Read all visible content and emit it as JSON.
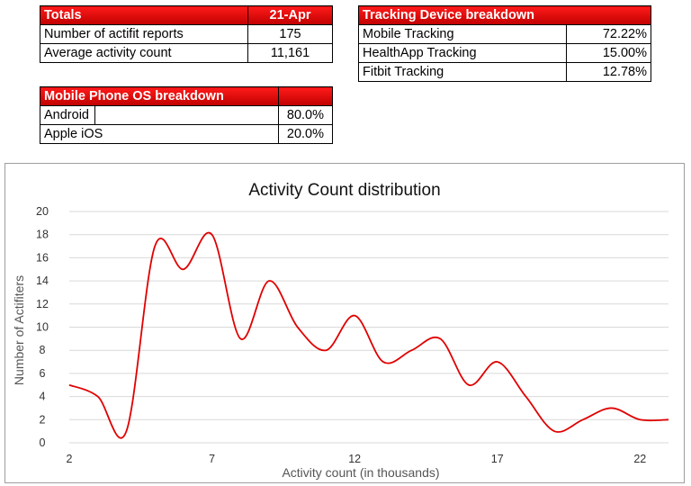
{
  "totals": {
    "header": "Totals",
    "date": "21-Apr",
    "rows": [
      {
        "label": "Number of actifit reports",
        "value": "175"
      },
      {
        "label": "Average activity count",
        "value": "11,161"
      }
    ]
  },
  "tracking": {
    "header": "Tracking Device breakdown",
    "rows": [
      {
        "label": "Mobile Tracking",
        "value": "72.22%"
      },
      {
        "label": "HealthApp Tracking",
        "value": "15.00%"
      },
      {
        "label": "Fitbit Tracking",
        "value": "12.78%"
      }
    ]
  },
  "os": {
    "header": "Mobile Phone OS breakdown",
    "rows": [
      {
        "label": "Android",
        "value": "80.0%"
      },
      {
        "label": "Apple iOS",
        "value": "20.0%"
      }
    ]
  },
  "chart_data": {
    "type": "line",
    "title": "Activity Count distribution",
    "xlabel": "Activity count (in thousands)",
    "ylabel": "Number of Actifiters",
    "x": [
      2,
      3,
      4,
      5,
      6,
      7,
      8,
      9,
      10,
      11,
      12,
      13,
      14,
      15,
      16,
      17,
      18,
      19,
      20,
      21,
      22,
      23
    ],
    "series": [
      {
        "values": [
          5,
          4,
          1,
          17,
          15,
          18,
          9,
          14,
          10,
          8,
          11,
          7,
          8,
          9,
          5,
          7,
          4,
          1,
          2,
          3,
          2,
          2
        ]
      }
    ],
    "xticks": [
      2,
      7,
      12,
      17,
      22
    ],
    "yticks": [
      0,
      2,
      4,
      6,
      8,
      10,
      12,
      14,
      16,
      18,
      20
    ],
    "xlim": [
      2,
      23
    ],
    "ylim": [
      0,
      20
    ],
    "smooth": true,
    "grid": "horizontal",
    "line_color": "#e00000"
  }
}
